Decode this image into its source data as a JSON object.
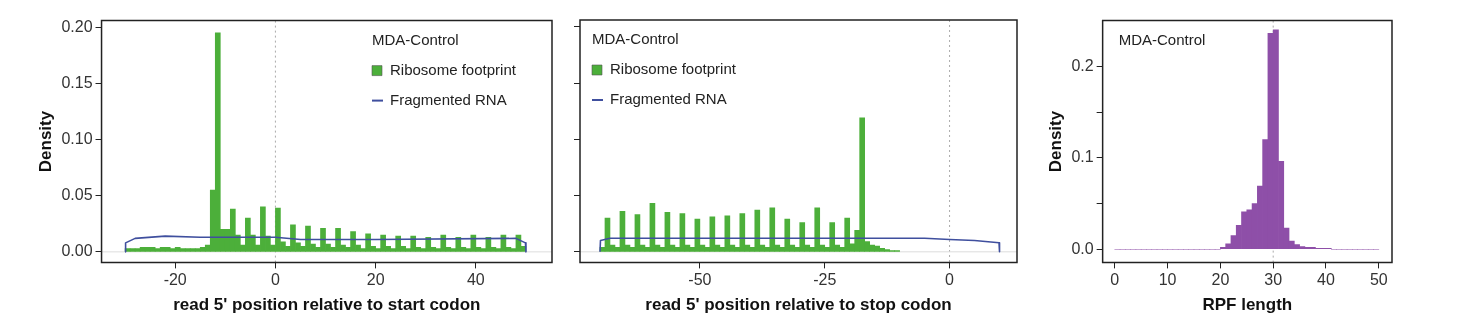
{
  "chart_data": [
    {
      "type": "histogram",
      "xlabel": "read 5' position relative to start codon",
      "ylabel": "Density",
      "legend_title": "MDA-Control",
      "legend": "top right",
      "grid": false,
      "bins": [
        -30,
        -29,
        -28,
        -27,
        -26,
        -25,
        -24,
        -23,
        -22,
        -21,
        -20,
        -19,
        -18,
        -17,
        -16,
        -15,
        -14,
        -13,
        -12,
        -11,
        -10,
        -9,
        -8,
        -7,
        -6,
        -5,
        -4,
        -3,
        -2,
        -1,
        0,
        1,
        2,
        3,
        4,
        5,
        6,
        7,
        8,
        9,
        10,
        11,
        12,
        13,
        14,
        15,
        16,
        17,
        18,
        19,
        20,
        21,
        22,
        23,
        24,
        25,
        26,
        27,
        28,
        29,
        30,
        31,
        32,
        33,
        34,
        35,
        36,
        37,
        38,
        39,
        40,
        41,
        42,
        43,
        44,
        45,
        46,
        47,
        48,
        49,
        50
      ],
      "series": [
        {
          "name": "Ribosome footprint",
          "type": "histogram",
          "color": "#4caf3a",
          "values": [
            0.003,
            0.003,
            0.003,
            0.004,
            0.004,
            0.004,
            0.003,
            0.004,
            0.004,
            0.003,
            0.004,
            0.003,
            0.003,
            0.003,
            0.003,
            0.004,
            0.006,
            0.055,
            0.195,
            0.02,
            0.02,
            0.038,
            0.015,
            0.006,
            0.03,
            0.015,
            0.006,
            0.04,
            0.014,
            0.006,
            0.039,
            0.009,
            0.005,
            0.024,
            0.008,
            0.005,
            0.023,
            0.007,
            0.004,
            0.021,
            0.007,
            0.004,
            0.021,
            0.006,
            0.004,
            0.018,
            0.006,
            0.003,
            0.016,
            0.005,
            0.003,
            0.015,
            0.005,
            0.003,
            0.014,
            0.005,
            0.003,
            0.014,
            0.004,
            0.003,
            0.013,
            0.004,
            0.003,
            0.015,
            0.004,
            0.003,
            0.013,
            0.004,
            0.003,
            0.015,
            0.004,
            0.003,
            0.013,
            0.004,
            0.003,
            0.015,
            0.004,
            0.003,
            0.015,
            0.005
          ]
        },
        {
          "name": "Fragmented RNA",
          "type": "line",
          "color": "#3f4f9e",
          "x": [
            -30,
            -29.9,
            -28,
            -22,
            -15,
            -5,
            0,
            5,
            20,
            48,
            49.9,
            50
          ],
          "values": [
            0,
            0.008,
            0.012,
            0.014,
            0.013,
            0.013,
            0.013,
            0.011,
            0.011,
            0.012,
            0.008,
            0
          ]
        }
      ],
      "xlim": [
        -34.7,
        55.2
      ],
      "xticks": [
        -20,
        0,
        20,
        40
      ],
      "ylim": [
        -0.0094,
        0.206
      ],
      "yticks": [
        {
          "value": 0,
          "label": "0.00"
        },
        {
          "value": 0.05,
          "label": "0.05"
        },
        {
          "value": 0.1,
          "label": "0.10"
        },
        {
          "value": 0.15,
          "label": "0.15"
        },
        {
          "value": 0.2,
          "label": "0.20"
        }
      ],
      "ref_lines": [
        {
          "axis": "x",
          "value": 0,
          "color": "#aaaaaa",
          "line_style": "dotted"
        },
        {
          "axis": "y",
          "value": 0,
          "color": "#dddddd",
          "line_style": "solid"
        }
      ]
    },
    {
      "type": "histogram",
      "xlabel": "read 5' position relative to stop codon",
      "legend_title": "MDA-Control",
      "legend": "top left",
      "grid": false,
      "tick_labels": "x",
      "bins": [
        -70,
        -69,
        -68,
        -67,
        -66,
        -65,
        -64,
        -63,
        -62,
        -61,
        -60,
        -59,
        -58,
        -57,
        -56,
        -55,
        -54,
        -53,
        -52,
        -51,
        -50,
        -49,
        -48,
        -47,
        -46,
        -45,
        -44,
        -43,
        -42,
        -41,
        -40,
        -39,
        -38,
        -37,
        -36,
        -35,
        -34,
        -33,
        -32,
        -31,
        -30,
        -29,
        -28,
        -27,
        -26,
        -25,
        -24,
        -23,
        -22,
        -21,
        -20,
        -19,
        -18,
        -17,
        -16,
        -15,
        -14,
        -13,
        -12,
        -11,
        -10
      ],
      "series": [
        {
          "name": "Ribosome footprint",
          "type": "histogram",
          "color": "#4caf3a",
          "values": [
            0.004,
            0.03,
            0.006,
            0.004,
            0.036,
            0.006,
            0.004,
            0.033,
            0.006,
            0.004,
            0.043,
            0.006,
            0.004,
            0.035,
            0.006,
            0.004,
            0.034,
            0.006,
            0.004,
            0.029,
            0.006,
            0.004,
            0.031,
            0.006,
            0.004,
            0.032,
            0.006,
            0.004,
            0.034,
            0.006,
            0.004,
            0.037,
            0.006,
            0.004,
            0.039,
            0.006,
            0.004,
            0.029,
            0.006,
            0.004,
            0.026,
            0.006,
            0.004,
            0.039,
            0.006,
            0.004,
            0.026,
            0.006,
            0.004,
            0.03,
            0.007,
            0.019,
            0.119,
            0.009,
            0.006,
            0.005,
            0.003,
            0.002,
            0.001,
            0.001
          ]
        },
        {
          "name": "Fragmented RNA",
          "type": "line",
          "color": "#3f4f9e",
          "x": [
            -70,
            -69.9,
            -68,
            -50,
            -30,
            -15,
            -5,
            0,
            5,
            9.9,
            10
          ],
          "values": [
            0,
            0.01,
            0.012,
            0.012,
            0.012,
            0.012,
            0.012,
            0.011,
            0.01,
            0.008,
            0
          ]
        }
      ],
      "xlim": [
        -74,
        13.5
      ],
      "xticks": [
        -50,
        -25,
        0
      ],
      "ylim": [
        -0.0094,
        0.206
      ],
      "yticks": [
        0,
        0.05,
        0.1,
        0.15,
        0.2
      ],
      "ref_lines": [
        {
          "axis": "x",
          "value": 0,
          "color": "#aaaaaa",
          "line_style": "dotted"
        },
        {
          "axis": "y",
          "value": 0,
          "color": "#dddddd",
          "line_style": "solid"
        }
      ]
    },
    {
      "type": "histogram",
      "xlabel": "RPF length",
      "ylabel": "Density",
      "grid": false,
      "annotations": [
        "MDA-Control"
      ],
      "bins": [
        0,
        1,
        2,
        3,
        4,
        5,
        6,
        7,
        8,
        9,
        10,
        11,
        12,
        13,
        14,
        15,
        16,
        17,
        18,
        19,
        20,
        21,
        22,
        23,
        24,
        25,
        26,
        27,
        28,
        29,
        30,
        31,
        32,
        33,
        34,
        35,
        36,
        37,
        38,
        39,
        40,
        41,
        42,
        43,
        44,
        45,
        46,
        47,
        48,
        49,
        50
      ],
      "series": [
        {
          "type": "histogram",
          "color": "#8e4fa8",
          "values": [
            0,
            0,
            0,
            0,
            0,
            0,
            0,
            0,
            0,
            0,
            0,
            0,
            0,
            0,
            0,
            0,
            0,
            0,
            0,
            0,
            0.002,
            0.006,
            0.015,
            0.026,
            0.041,
            0.043,
            0.05,
            0.069,
            0.12,
            0.236,
            0.24,
            0.096,
            0.023,
            0.009,
            0.005,
            0.003,
            0.002,
            0.002,
            0.001,
            0.001,
            0.001,
            0,
            0,
            0,
            0,
            0,
            0,
            0,
            0,
            0
          ]
        }
      ],
      "xlim": [
        -2.3,
        52.5
      ],
      "xticks": [
        0,
        10,
        20,
        30,
        40,
        50
      ],
      "ylim": [
        -0.0144,
        0.25
      ],
      "yticks": [
        {
          "value": 0,
          "label": "0.0"
        },
        {
          "value": 0.05,
          "label": null
        },
        {
          "value": 0.1,
          "label": "0.1"
        },
        {
          "value": 0.15,
          "label": null
        },
        {
          "value": 0.2,
          "label": "0.2"
        }
      ],
      "ref_lines": [
        {
          "axis": "x",
          "value": 30,
          "color": "#aaaaaa",
          "line_style": "dotted"
        }
      ]
    }
  ]
}
